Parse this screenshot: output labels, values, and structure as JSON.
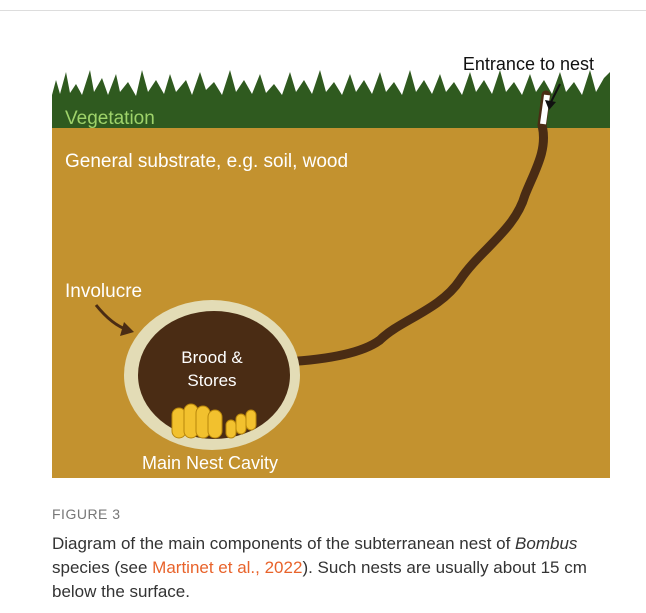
{
  "figure": {
    "labels": {
      "entrance": "Entrance to nest",
      "vegetation": "Vegetation",
      "substrate": "General substrate, e.g. soil, wood",
      "involucre": "Involucre",
      "brood_line1": "Brood &",
      "brood_line2": "Stores",
      "cavity": "Main Nest Cavity"
    },
    "number": "FIGURE 3",
    "caption": {
      "before": "Diagram of the main components of the subterranean nest of ",
      "italic": "Bombus",
      "middle": " species (see ",
      "link": "Martinet et al., 2022",
      "after": "). Such nests are usually about 15 cm below the surface."
    }
  }
}
